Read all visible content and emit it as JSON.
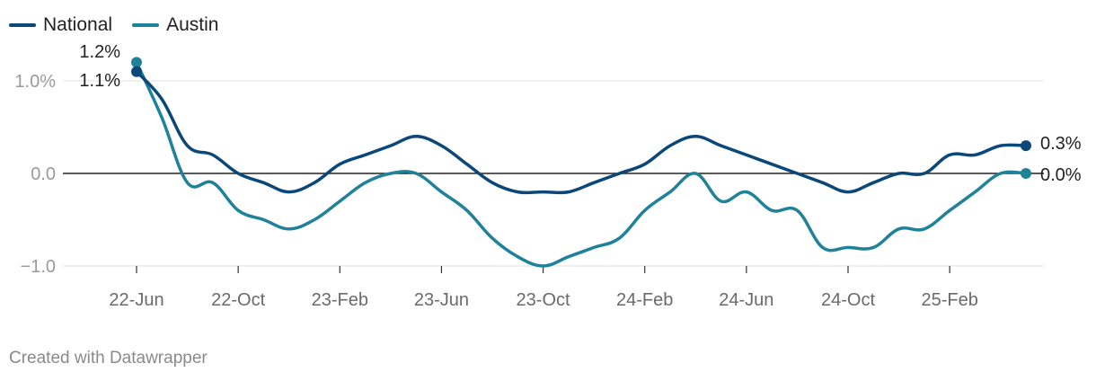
{
  "chart_data": {
    "type": "line",
    "title": "",
    "xlabel": "",
    "ylabel": "",
    "ylim": [
      -1.0,
      1.0
    ],
    "y_ticks": [
      1.0,
      0.0,
      -1.0
    ],
    "y_tick_labels": [
      "1.0%",
      "0.0",
      "−1.0"
    ],
    "x_tick_labels": [
      "22-Jun",
      "22-Oct",
      "23-Feb",
      "23-Jun",
      "23-Oct",
      "24-Feb",
      "24-Jun",
      "24-Oct",
      "25-Feb"
    ],
    "grid": true,
    "legend": "top-left",
    "x": [
      "2022-06",
      "2022-07",
      "2022-08",
      "2022-09",
      "2022-10",
      "2022-11",
      "2022-12",
      "2023-01",
      "2023-02",
      "2023-03",
      "2023-04",
      "2023-05",
      "2023-06",
      "2023-07",
      "2023-08",
      "2023-09",
      "2023-10",
      "2023-11",
      "2023-12",
      "2024-01",
      "2024-02",
      "2024-03",
      "2024-04",
      "2024-05",
      "2024-06",
      "2024-07",
      "2024-08",
      "2024-09",
      "2024-10",
      "2024-11",
      "2024-12",
      "2025-01",
      "2025-02",
      "2025-03",
      "2025-04",
      "2025-05"
    ],
    "series": [
      {
        "name": "National",
        "color": "#0b4778",
        "values": [
          1.1,
          0.8,
          0.3,
          0.2,
          0.0,
          -0.1,
          -0.2,
          -0.1,
          0.1,
          0.2,
          0.3,
          0.4,
          0.3,
          0.1,
          -0.1,
          -0.2,
          -0.2,
          -0.2,
          -0.1,
          0.0,
          0.1,
          0.3,
          0.4,
          0.3,
          0.2,
          0.1,
          0.0,
          -0.1,
          -0.2,
          -0.1,
          0.0,
          0.0,
          0.2,
          0.2,
          0.3,
          0.3
        ],
        "end_label": "0.3%",
        "start_label": "1.1%"
      },
      {
        "name": "Austin",
        "color": "#1f8299",
        "values": [
          1.2,
          0.6,
          -0.1,
          -0.1,
          -0.4,
          -0.5,
          -0.6,
          -0.5,
          -0.3,
          -0.1,
          0.0,
          0.0,
          -0.2,
          -0.4,
          -0.7,
          -0.9,
          -1.0,
          -0.9,
          -0.8,
          -0.7,
          -0.4,
          -0.2,
          0.0,
          -0.3,
          -0.2,
          -0.4,
          -0.4,
          -0.8,
          -0.8,
          -0.8,
          -0.6,
          -0.6,
          -0.4,
          -0.2,
          0.0,
          0.0
        ],
        "end_label": "0.0%",
        "start_label": "1.2%"
      }
    ]
  },
  "footer": "Created with Datawrapper"
}
